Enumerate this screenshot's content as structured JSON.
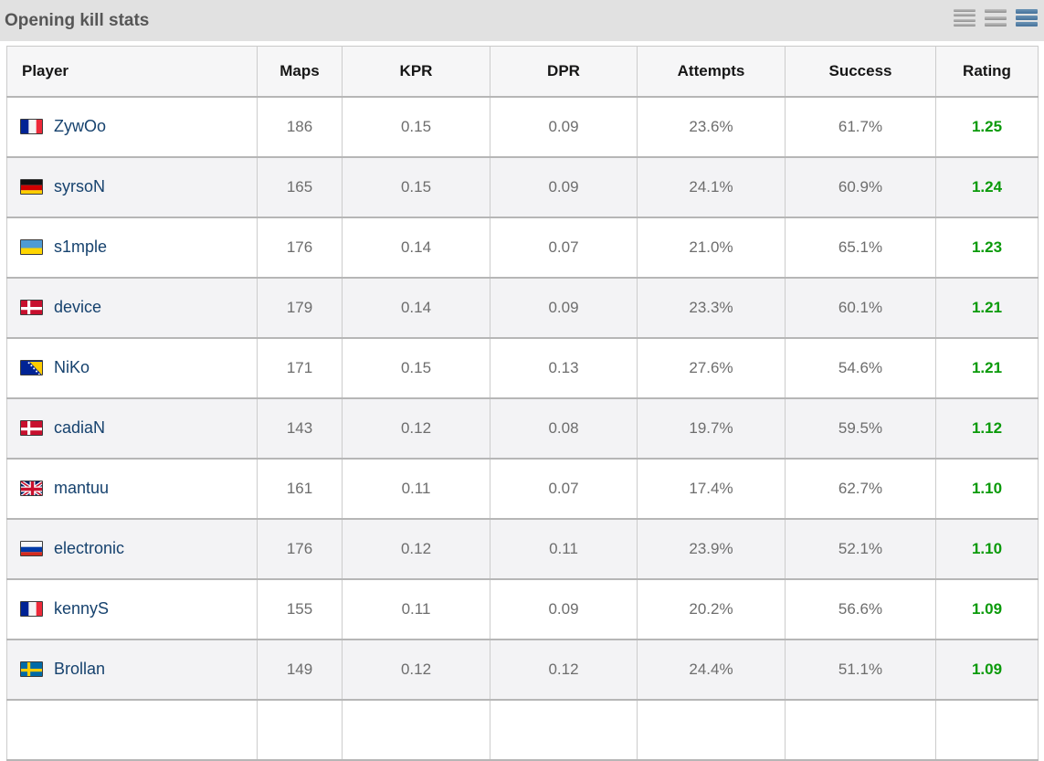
{
  "title_bar": {
    "title": "Opening kill stats",
    "view_icons": [
      {
        "name": "list-view-compact-icon",
        "active": false
      },
      {
        "name": "list-view-normal-icon",
        "active": false
      },
      {
        "name": "list-view-expanded-icon",
        "active": true
      }
    ]
  },
  "table": {
    "columns": [
      "Player",
      "Maps",
      "KPR",
      "DPR",
      "Attempts",
      "Success",
      "Rating"
    ],
    "rows": [
      {
        "player": "ZywOo",
        "country": "France",
        "flag": "fr",
        "maps": "186",
        "kpr": "0.15",
        "dpr": "0.09",
        "attempts": "23.6%",
        "success": "61.7%",
        "rating": "1.25"
      },
      {
        "player": "syrsoN",
        "country": "Germany",
        "flag": "de",
        "maps": "165",
        "kpr": "0.15",
        "dpr": "0.09",
        "attempts": "24.1%",
        "success": "60.9%",
        "rating": "1.24"
      },
      {
        "player": "s1mple",
        "country": "Ukraine",
        "flag": "ua",
        "maps": "176",
        "kpr": "0.14",
        "dpr": "0.07",
        "attempts": "21.0%",
        "success": "65.1%",
        "rating": "1.23"
      },
      {
        "player": "device",
        "country": "Denmark",
        "flag": "dk",
        "maps": "179",
        "kpr": "0.14",
        "dpr": "0.09",
        "attempts": "23.3%",
        "success": "60.1%",
        "rating": "1.21"
      },
      {
        "player": "NiKo",
        "country": "Bosnia",
        "flag": "ba",
        "maps": "171",
        "kpr": "0.15",
        "dpr": "0.13",
        "attempts": "27.6%",
        "success": "54.6%",
        "rating": "1.21"
      },
      {
        "player": "cadiaN",
        "country": "Denmark",
        "flag": "dk",
        "maps": "143",
        "kpr": "0.12",
        "dpr": "0.08",
        "attempts": "19.7%",
        "success": "59.5%",
        "rating": "1.12"
      },
      {
        "player": "mantuu",
        "country": "United Kingdom",
        "flag": "gb",
        "maps": "161",
        "kpr": "0.11",
        "dpr": "0.07",
        "attempts": "17.4%",
        "success": "62.7%",
        "rating": "1.10"
      },
      {
        "player": "electronic",
        "country": "Russia",
        "flag": "ru",
        "maps": "176",
        "kpr": "0.12",
        "dpr": "0.11",
        "attempts": "23.9%",
        "success": "52.1%",
        "rating": "1.10"
      },
      {
        "player": "kennyS",
        "country": "France",
        "flag": "fr",
        "maps": "155",
        "kpr": "0.11",
        "dpr": "0.09",
        "attempts": "20.2%",
        "success": "56.6%",
        "rating": "1.09"
      },
      {
        "player": "Brollan",
        "country": "Sweden",
        "flag": "se",
        "maps": "149",
        "kpr": "0.12",
        "dpr": "0.12",
        "attempts": "24.4%",
        "success": "51.1%",
        "rating": "1.09"
      }
    ]
  },
  "colors": {
    "rating_green": "#0b9a0b",
    "link_blue": "#16426e",
    "active_icon_blue": "#4e7da6"
  }
}
